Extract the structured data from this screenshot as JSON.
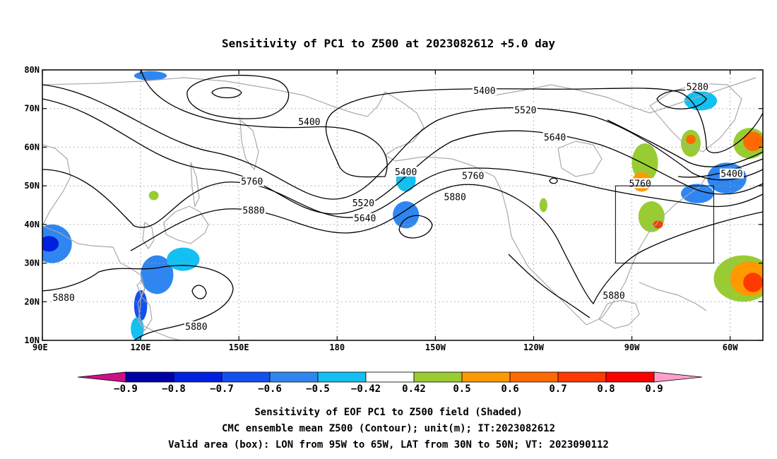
{
  "title": "Sensitivity of PC1 to Z500 at 2023082612 +5.0 day",
  "footer": {
    "line1": "Sensitivity of EOF PC1 to Z500 field (Shaded)",
    "line2": "CMC ensemble mean Z500 (Contour); unit(m); IT:2023082612",
    "line3": "Valid area (box): LON from 95W to 65W, LAT from 30N to 50N; VT: 2023090112"
  },
  "map": {
    "lon_range": [
      90,
      310
    ],
    "lat_range": [
      10,
      80
    ],
    "x_ticks": [
      {
        "lon": 90,
        "label": "90E"
      },
      {
        "lon": 120,
        "label": "120E"
      },
      {
        "lon": 150,
        "label": "150E"
      },
      {
        "lon": 180,
        "label": "180"
      },
      {
        "lon": 210,
        "label": "150W"
      },
      {
        "lon": 240,
        "label": "120W"
      },
      {
        "lon": 270,
        "label": "90W"
      },
      {
        "lon": 300,
        "label": "60W"
      }
    ],
    "y_ticks": [
      {
        "lat": 80,
        "label": "80N"
      },
      {
        "lat": 70,
        "label": "70N"
      },
      {
        "lat": 60,
        "label": "60N"
      },
      {
        "lat": 50,
        "label": "50N"
      },
      {
        "lat": 40,
        "label": "40N"
      },
      {
        "lat": 30,
        "label": "30N"
      },
      {
        "lat": 20,
        "label": "20N"
      },
      {
        "lat": 10,
        "label": "10N"
      }
    ],
    "grid": true,
    "valid_box": {
      "lon_min": 265,
      "lon_max": 295,
      "lat_min": 30,
      "lat_max": 50
    }
  },
  "contour_labels": [
    {
      "text": "5400",
      "lon": 171.5,
      "lat": 66.5
    },
    {
      "text": "5400",
      "lon": 201,
      "lat": 53.5
    },
    {
      "text": "5400",
      "lon": 225,
      "lat": 74.5
    },
    {
      "text": "5280",
      "lon": 290,
      "lat": 75.5
    },
    {
      "text": "5400",
      "lon": 300.5,
      "lat": 53
    },
    {
      "text": "5520",
      "lon": 237.5,
      "lat": 69.5
    },
    {
      "text": "5520",
      "lon": 188,
      "lat": 45.5
    },
    {
      "text": "5640",
      "lon": 246.5,
      "lat": 62.5
    },
    {
      "text": "5640",
      "lon": 188.5,
      "lat": 41.5
    },
    {
      "text": "5760",
      "lon": 221.5,
      "lat": 52.5
    },
    {
      "text": "5760",
      "lon": 272.5,
      "lat": 50.5
    },
    {
      "text": "5760",
      "lon": 154,
      "lat": 51
    },
    {
      "text": "5880",
      "lon": 216,
      "lat": 47
    },
    {
      "text": "5880",
      "lon": 154.5,
      "lat": 43.5
    },
    {
      "text": "5880",
      "lon": 96.5,
      "lat": 21
    },
    {
      "text": "5880",
      "lon": 137,
      "lat": 13.5
    },
    {
      "text": "5880",
      "lon": 264.5,
      "lat": 21.5
    }
  ],
  "sensitivity_shading": [
    {
      "lon": 93,
      "lat": 35,
      "rlon": 6,
      "rlat": 5,
      "value": -0.6
    },
    {
      "lon": 92,
      "lat": 35,
      "rlon": 3,
      "rlat": 2,
      "value": -0.8
    },
    {
      "lon": 125,
      "lat": 27,
      "rlon": 5,
      "rlat": 5,
      "value": -0.6
    },
    {
      "lon": 133,
      "lat": 31,
      "rlon": 5,
      "rlat": 3,
      "value": -0.5
    },
    {
      "lon": 120,
      "lat": 19,
      "rlon": 2,
      "rlat": 4,
      "value": -0.7
    },
    {
      "lon": 119,
      "lat": 13,
      "rlon": 2,
      "rlat": 3,
      "value": -0.5
    },
    {
      "lon": 117,
      "lat": 35,
      "rlon": 2,
      "rlat": 1.5,
      "value": -0.42
    },
    {
      "lon": 201,
      "lat": 51.5,
      "rlon": 3,
      "rlat": 3,
      "value": -0.5
    },
    {
      "lon": 201,
      "lat": 42.5,
      "rlon": 4,
      "rlat": 3.5,
      "value": -0.6
    },
    {
      "lon": 291,
      "lat": 72,
      "rlon": 5,
      "rlat": 2.5,
      "value": -0.5
    },
    {
      "lon": 299,
      "lat": 52,
      "rlon": 6,
      "rlat": 4,
      "value": -0.6
    },
    {
      "lon": 290,
      "lat": 48,
      "rlon": 5,
      "rlat": 2.5,
      "value": -0.6
    },
    {
      "lon": 123,
      "lat": 78.5,
      "rlon": 5,
      "rlat": 1.2,
      "value": -0.6
    },
    {
      "lon": 98,
      "lat": 20,
      "rlon": 2,
      "rlat": 1,
      "value": -0.42
    },
    {
      "lon": 274,
      "lat": 56,
      "rlon": 4,
      "rlat": 5,
      "value": 0.42
    },
    {
      "lon": 273,
      "lat": 51,
      "rlon": 3,
      "rlat": 2.5,
      "value": 0.5
    },
    {
      "lon": 276,
      "lat": 42,
      "rlon": 4,
      "rlat": 4,
      "value": 0.42
    },
    {
      "lon": 278,
      "lat": 40,
      "rlon": 1.5,
      "rlat": 1,
      "value": 0.7
    },
    {
      "lon": 288,
      "lat": 61,
      "rlon": 3,
      "rlat": 3.5,
      "value": 0.42
    },
    {
      "lon": 288,
      "lat": 62,
      "rlon": 1.5,
      "rlat": 1.2,
      "value": 0.6
    },
    {
      "lon": 306,
      "lat": 61,
      "rlon": 5,
      "rlat": 4,
      "value": 0.42
    },
    {
      "lon": 307,
      "lat": 61.5,
      "rlon": 3,
      "rlat": 2.5,
      "value": 0.6
    },
    {
      "lon": 304,
      "lat": 26,
      "rlon": 9,
      "rlat": 6,
      "value": 0.42
    },
    {
      "lon": 306,
      "lat": 26,
      "rlon": 6,
      "rlat": 4.5,
      "value": 0.5
    },
    {
      "lon": 307,
      "lat": 25,
      "rlon": 3,
      "rlat": 2.5,
      "value": 0.7
    },
    {
      "lon": 243,
      "lat": 45,
      "rlon": 1.2,
      "rlat": 1.8,
      "value": 0.42
    },
    {
      "lon": 124,
      "lat": 47.5,
      "rlon": 1.5,
      "rlat": 1.2,
      "value": 0.42
    }
  ],
  "colorbar": {
    "levels": [
      "-0.9",
      "-0.8",
      "-0.7",
      "-0.6",
      "-0.5",
      "-0.42",
      "0.42",
      "0.5",
      "0.6",
      "0.7",
      "0.8",
      "0.9"
    ],
    "colors": [
      "#0000a8",
      "#0020e0",
      "#1450f0",
      "#2f86f0",
      "#12c0f2",
      "#ffffff",
      "#99cc33",
      "#ff9900",
      "#ff6a00",
      "#ff3a00",
      "#ff0000"
    ],
    "low_color": "#cc1188",
    "high_color": "#ff9fcc"
  },
  "colors": {
    "contour": "#000000",
    "coast": "#a9a9a9",
    "grid": "#a0a0a0"
  }
}
